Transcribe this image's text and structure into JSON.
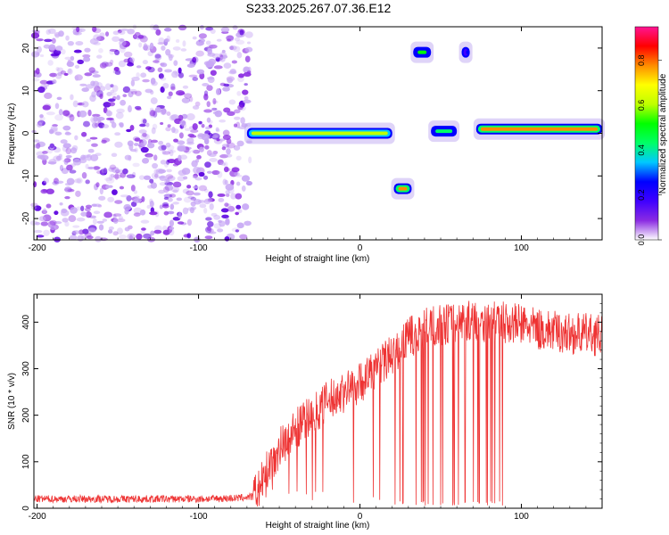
{
  "title": "S233.2025.267.07.36.E12",
  "chart_data": [
    {
      "type": "heatmap",
      "xlabel": "Height of straight line (km)",
      "ylabel": "Frequency (Hz)",
      "xlim": [
        -202,
        150
      ],
      "ylim": [
        -25,
        25
      ],
      "xticks": [
        -200,
        -100,
        0,
        100
      ],
      "yticks": [
        -20,
        -10,
        0,
        10,
        20
      ],
      "colorbar": {
        "label": "Normalized spectral amplitude",
        "range": [
          0,
          0.95
        ],
        "ticks": [
          "0.0",
          "0.2",
          "0.4",
          "0.6",
          "0.8"
        ],
        "tick_values": [
          0,
          0.2,
          0.4,
          0.6,
          0.8
        ],
        "colors": [
          "#ffffff",
          "#8a2be2",
          "#3f00ff",
          "#0000ff",
          "#00c8ff",
          "#00ff66",
          "#00ff00",
          "#bfff00",
          "#ffff00",
          "#ff8c00",
          "#ff0000",
          "#ff1493"
        ]
      },
      "noise_region_x": [
        -202,
        -68
      ],
      "features": [
        {
          "name": "main-ridge",
          "x": [
            -70,
            20
          ],
          "frequency": 0,
          "amplitude": 0.6
        },
        {
          "name": "main-ridge-2",
          "x": [
            44,
            60
          ],
          "frequency": 0.5,
          "amplitude": 0.4
        },
        {
          "name": "main-ridge-3",
          "x": [
            72,
            150
          ],
          "frequency": 1,
          "amplitude": 0.8
        },
        {
          "name": "upper-blob-1",
          "x": [
            33,
            44
          ],
          "frequency": 19,
          "amplitude": 0.5
        },
        {
          "name": "upper-blob-2",
          "x": [
            63,
            68
          ],
          "frequency": 19,
          "amplitude": 0.3
        },
        {
          "name": "lower-blob",
          "x": [
            21,
            32
          ],
          "frequency": -13,
          "amplitude": 0.8
        }
      ]
    },
    {
      "type": "line",
      "xlabel": "Height of straight line (km)",
      "ylabel": "SNR (10 * v/v)",
      "xlim": [
        -202,
        150
      ],
      "ylim": [
        0,
        460
      ],
      "xticks": [
        -200,
        -100,
        0,
        100
      ],
      "yticks": [
        0,
        100,
        200,
        300,
        400
      ],
      "series": [
        {
          "name": "SNR",
          "color": "#ee3333",
          "x": [
            -202,
            -150,
            -100,
            -75,
            -66,
            -62,
            -55,
            -50,
            -40,
            -30,
            -20,
            -10,
            -5,
            0,
            10,
            20,
            30,
            40,
            50,
            60,
            70,
            80,
            90,
            100,
            110,
            120,
            130,
            140,
            150
          ],
          "y": [
            20,
            20,
            20,
            22,
            25,
            45,
            100,
            130,
            170,
            200,
            230,
            250,
            260,
            270,
            300,
            330,
            365,
            385,
            395,
            400,
            405,
            400,
            400,
            395,
            385,
            380,
            375,
            375,
            370
          ]
        }
      ]
    }
  ]
}
